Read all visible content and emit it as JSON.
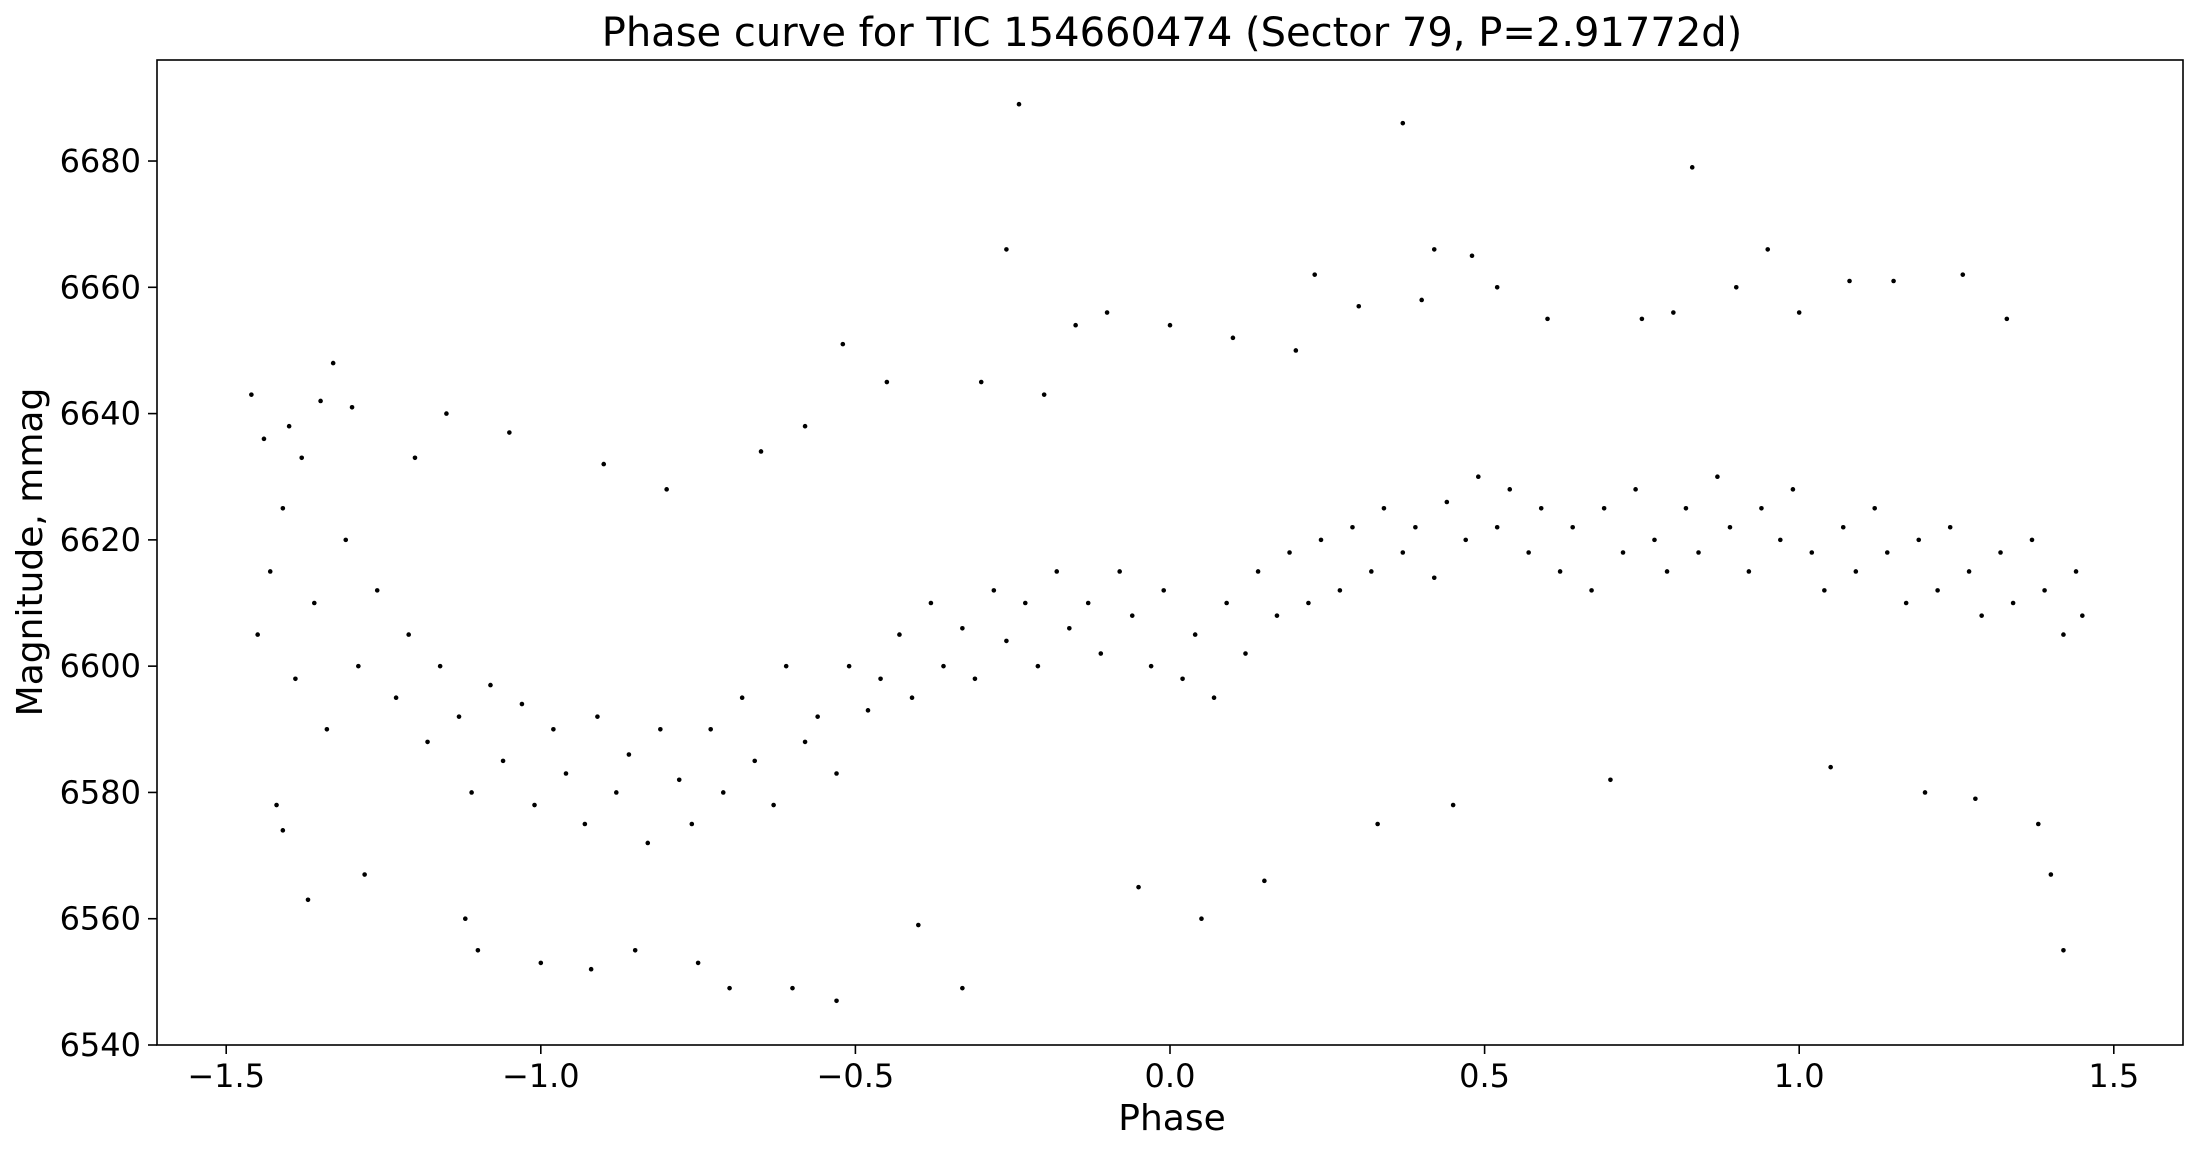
{
  "chart_data": {
    "type": "scatter",
    "title": "Phase curve for TIC 154660474 (Sector 79, P=2.91772d)",
    "xlabel": "Phase",
    "ylabel": "Magnitude, mmag",
    "xlim": [
      -1.61,
      1.61
    ],
    "ylim": [
      6540,
      6696
    ],
    "x_ticks": [
      {
        "value": -1.5,
        "label": "−1.5"
      },
      {
        "value": -1.0,
        "label": "−1.0"
      },
      {
        "value": -0.5,
        "label": "−0.5"
      },
      {
        "value": 0.0,
        "label": "0.0"
      },
      {
        "value": 0.5,
        "label": "0.5"
      },
      {
        "value": 1.0,
        "label": "1.0"
      },
      {
        "value": 1.5,
        "label": "1.5"
      }
    ],
    "y_ticks": [
      {
        "value": 6540,
        "label": "6540"
      },
      {
        "value": 6560,
        "label": "6560"
      },
      {
        "value": 6580,
        "label": "6580"
      },
      {
        "value": 6600,
        "label": "6600"
      },
      {
        "value": 6620,
        "label": "6620"
      },
      {
        "value": 6640,
        "label": "6640"
      },
      {
        "value": 6660,
        "label": "6660"
      },
      {
        "value": 6680,
        "label": "6680"
      }
    ],
    "grid": false,
    "marker_color": "#000000",
    "points": [
      [
        -1.46,
        6643
      ],
      [
        -1.44,
        6636
      ],
      [
        -1.42,
        6578
      ],
      [
        -1.41,
        6574
      ],
      [
        -1.4,
        6638
      ],
      [
        -1.38,
        6633
      ],
      [
        -1.37,
        6563
      ],
      [
        -1.35,
        6642
      ],
      [
        -1.33,
        6648
      ],
      [
        -1.3,
        6641
      ],
      [
        -1.28,
        6567
      ],
      [
        -1.2,
        6633
      ],
      [
        -1.15,
        6640
      ],
      [
        -1.12,
        6560
      ],
      [
        -1.1,
        6555
      ],
      [
        -1.05,
        6637
      ],
      [
        -1.0,
        6553
      ],
      [
        -0.92,
        6552
      ],
      [
        -0.9,
        6632
      ],
      [
        -0.85,
        6555
      ],
      [
        -0.8,
        6628
      ],
      [
        -0.75,
        6553
      ],
      [
        -0.7,
        6549
      ],
      [
        -0.65,
        6634
      ],
      [
        -0.6,
        6549
      ],
      [
        -0.58,
        6638
      ],
      [
        -0.53,
        6547
      ],
      [
        -0.52,
        6651
      ],
      [
        -0.45,
        6645
      ],
      [
        -0.4,
        6559
      ],
      [
        -0.33,
        6549
      ],
      [
        -0.3,
        6645
      ],
      [
        -0.26,
        6666
      ],
      [
        -0.24,
        6689
      ],
      [
        -0.2,
        6643
      ],
      [
        -0.15,
        6654
      ],
      [
        -0.1,
        6656
      ],
      [
        -0.05,
        6565
      ],
      [
        0.0,
        6654
      ],
      [
        0.05,
        6560
      ],
      [
        0.1,
        6652
      ],
      [
        0.15,
        6566
      ],
      [
        0.2,
        6650
      ],
      [
        0.23,
        6662
      ],
      [
        0.3,
        6657
      ],
      [
        0.33,
        6575
      ],
      [
        0.37,
        6686
      ],
      [
        0.4,
        6658
      ],
      [
        0.42,
        6666
      ],
      [
        0.45,
        6578
      ],
      [
        0.48,
        6665
      ],
      [
        0.52,
        6660
      ],
      [
        0.6,
        6655
      ],
      [
        0.7,
        6582
      ],
      [
        0.75,
        6655
      ],
      [
        0.8,
        6656
      ],
      [
        0.83,
        6679
      ],
      [
        0.9,
        6660
      ],
      [
        0.95,
        6666
      ],
      [
        1.0,
        6656
      ],
      [
        1.05,
        6584
      ],
      [
        1.08,
        6661
      ],
      [
        1.15,
        6661
      ],
      [
        1.2,
        6580
      ],
      [
        1.26,
        6662
      ],
      [
        1.28,
        6579
      ],
      [
        1.33,
        6655
      ],
      [
        1.38,
        6575
      ],
      [
        1.4,
        6567
      ],
      [
        1.42,
        6555
      ],
      [
        -1.45,
        6605
      ],
      [
        -1.43,
        6615
      ],
      [
        -1.41,
        6625
      ],
      [
        -1.39,
        6598
      ],
      [
        -1.36,
        6610
      ],
      [
        -1.34,
        6590
      ],
      [
        -1.31,
        6620
      ],
      [
        -1.29,
        6600
      ],
      [
        -1.26,
        6612
      ],
      [
        -1.23,
        6595
      ],
      [
        -1.21,
        6605
      ],
      [
        -1.18,
        6588
      ],
      [
        -1.16,
        6600
      ],
      [
        -1.13,
        6592
      ],
      [
        -1.11,
        6580
      ],
      [
        -1.08,
        6597
      ],
      [
        -1.06,
        6585
      ],
      [
        -1.03,
        6594
      ],
      [
        -1.01,
        6578
      ],
      [
        -0.98,
        6590
      ],
      [
        -0.96,
        6583
      ],
      [
        -0.93,
        6575
      ],
      [
        -0.91,
        6592
      ],
      [
        -0.88,
        6580
      ],
      [
        -0.86,
        6586
      ],
      [
        -0.83,
        6572
      ],
      [
        -0.81,
        6590
      ],
      [
        -0.78,
        6582
      ],
      [
        -0.76,
        6575
      ],
      [
        -0.73,
        6590
      ],
      [
        -0.71,
        6580
      ],
      [
        -0.68,
        6595
      ],
      [
        -0.66,
        6585
      ],
      [
        -0.63,
        6578
      ],
      [
        -0.61,
        6600
      ],
      [
        -0.58,
        6588
      ],
      [
        -0.56,
        6592
      ],
      [
        -0.53,
        6583
      ],
      [
        -0.51,
        6600
      ],
      [
        -0.48,
        6593
      ],
      [
        -0.46,
        6598
      ],
      [
        -0.43,
        6605
      ],
      [
        -0.41,
        6595
      ],
      [
        -0.38,
        6610
      ],
      [
        -0.36,
        6600
      ],
      [
        -0.33,
        6606
      ],
      [
        -0.31,
        6598
      ],
      [
        -0.28,
        6612
      ],
      [
        -0.26,
        6604
      ],
      [
        -0.23,
        6610
      ],
      [
        -0.21,
        6600
      ],
      [
        -0.18,
        6615
      ],
      [
        -0.16,
        6606
      ],
      [
        -0.13,
        6610
      ],
      [
        -0.11,
        6602
      ],
      [
        -0.08,
        6615
      ],
      [
        -0.06,
        6608
      ],
      [
        -0.03,
        6600
      ],
      [
        -0.01,
        6612
      ],
      [
        0.02,
        6598
      ],
      [
        0.04,
        6605
      ],
      [
        0.07,
        6595
      ],
      [
        0.09,
        6610
      ],
      [
        0.12,
        6602
      ],
      [
        0.14,
        6615
      ],
      [
        0.17,
        6608
      ],
      [
        0.19,
        6618
      ],
      [
        0.22,
        6610
      ],
      [
        0.24,
        6620
      ],
      [
        0.27,
        6612
      ],
      [
        0.29,
        6622
      ],
      [
        0.32,
        6615
      ],
      [
        0.34,
        6625
      ],
      [
        0.37,
        6618
      ],
      [
        0.39,
        6622
      ],
      [
        0.42,
        6614
      ],
      [
        0.44,
        6626
      ],
      [
        0.47,
        6620
      ],
      [
        0.49,
        6630
      ],
      [
        0.52,
        6622
      ],
      [
        0.54,
        6628
      ],
      [
        0.57,
        6618
      ],
      [
        0.59,
        6625
      ],
      [
        0.62,
        6615
      ],
      [
        0.64,
        6622
      ],
      [
        0.67,
        6612
      ],
      [
        0.69,
        6625
      ],
      [
        0.72,
        6618
      ],
      [
        0.74,
        6628
      ],
      [
        0.77,
        6620
      ],
      [
        0.79,
        6615
      ],
      [
        0.82,
        6625
      ],
      [
        0.84,
        6618
      ],
      [
        0.87,
        6630
      ],
      [
        0.89,
        6622
      ],
      [
        0.92,
        6615
      ],
      [
        0.94,
        6625
      ],
      [
        0.97,
        6620
      ],
      [
        0.99,
        6628
      ],
      [
        1.02,
        6618
      ],
      [
        1.04,
        6612
      ],
      [
        1.07,
        6622
      ],
      [
        1.09,
        6615
      ],
      [
        1.12,
        6625
      ],
      [
        1.14,
        6618
      ],
      [
        1.17,
        6610
      ],
      [
        1.19,
        6620
      ],
      [
        1.22,
        6612
      ],
      [
        1.24,
        6622
      ],
      [
        1.27,
        6615
      ],
      [
        1.29,
        6608
      ],
      [
        1.32,
        6618
      ],
      [
        1.34,
        6610
      ],
      [
        1.37,
        6620
      ],
      [
        1.39,
        6612
      ],
      [
        1.42,
        6605
      ],
      [
        1.44,
        6615
      ],
      [
        1.45,
        6608
      ]
    ]
  }
}
